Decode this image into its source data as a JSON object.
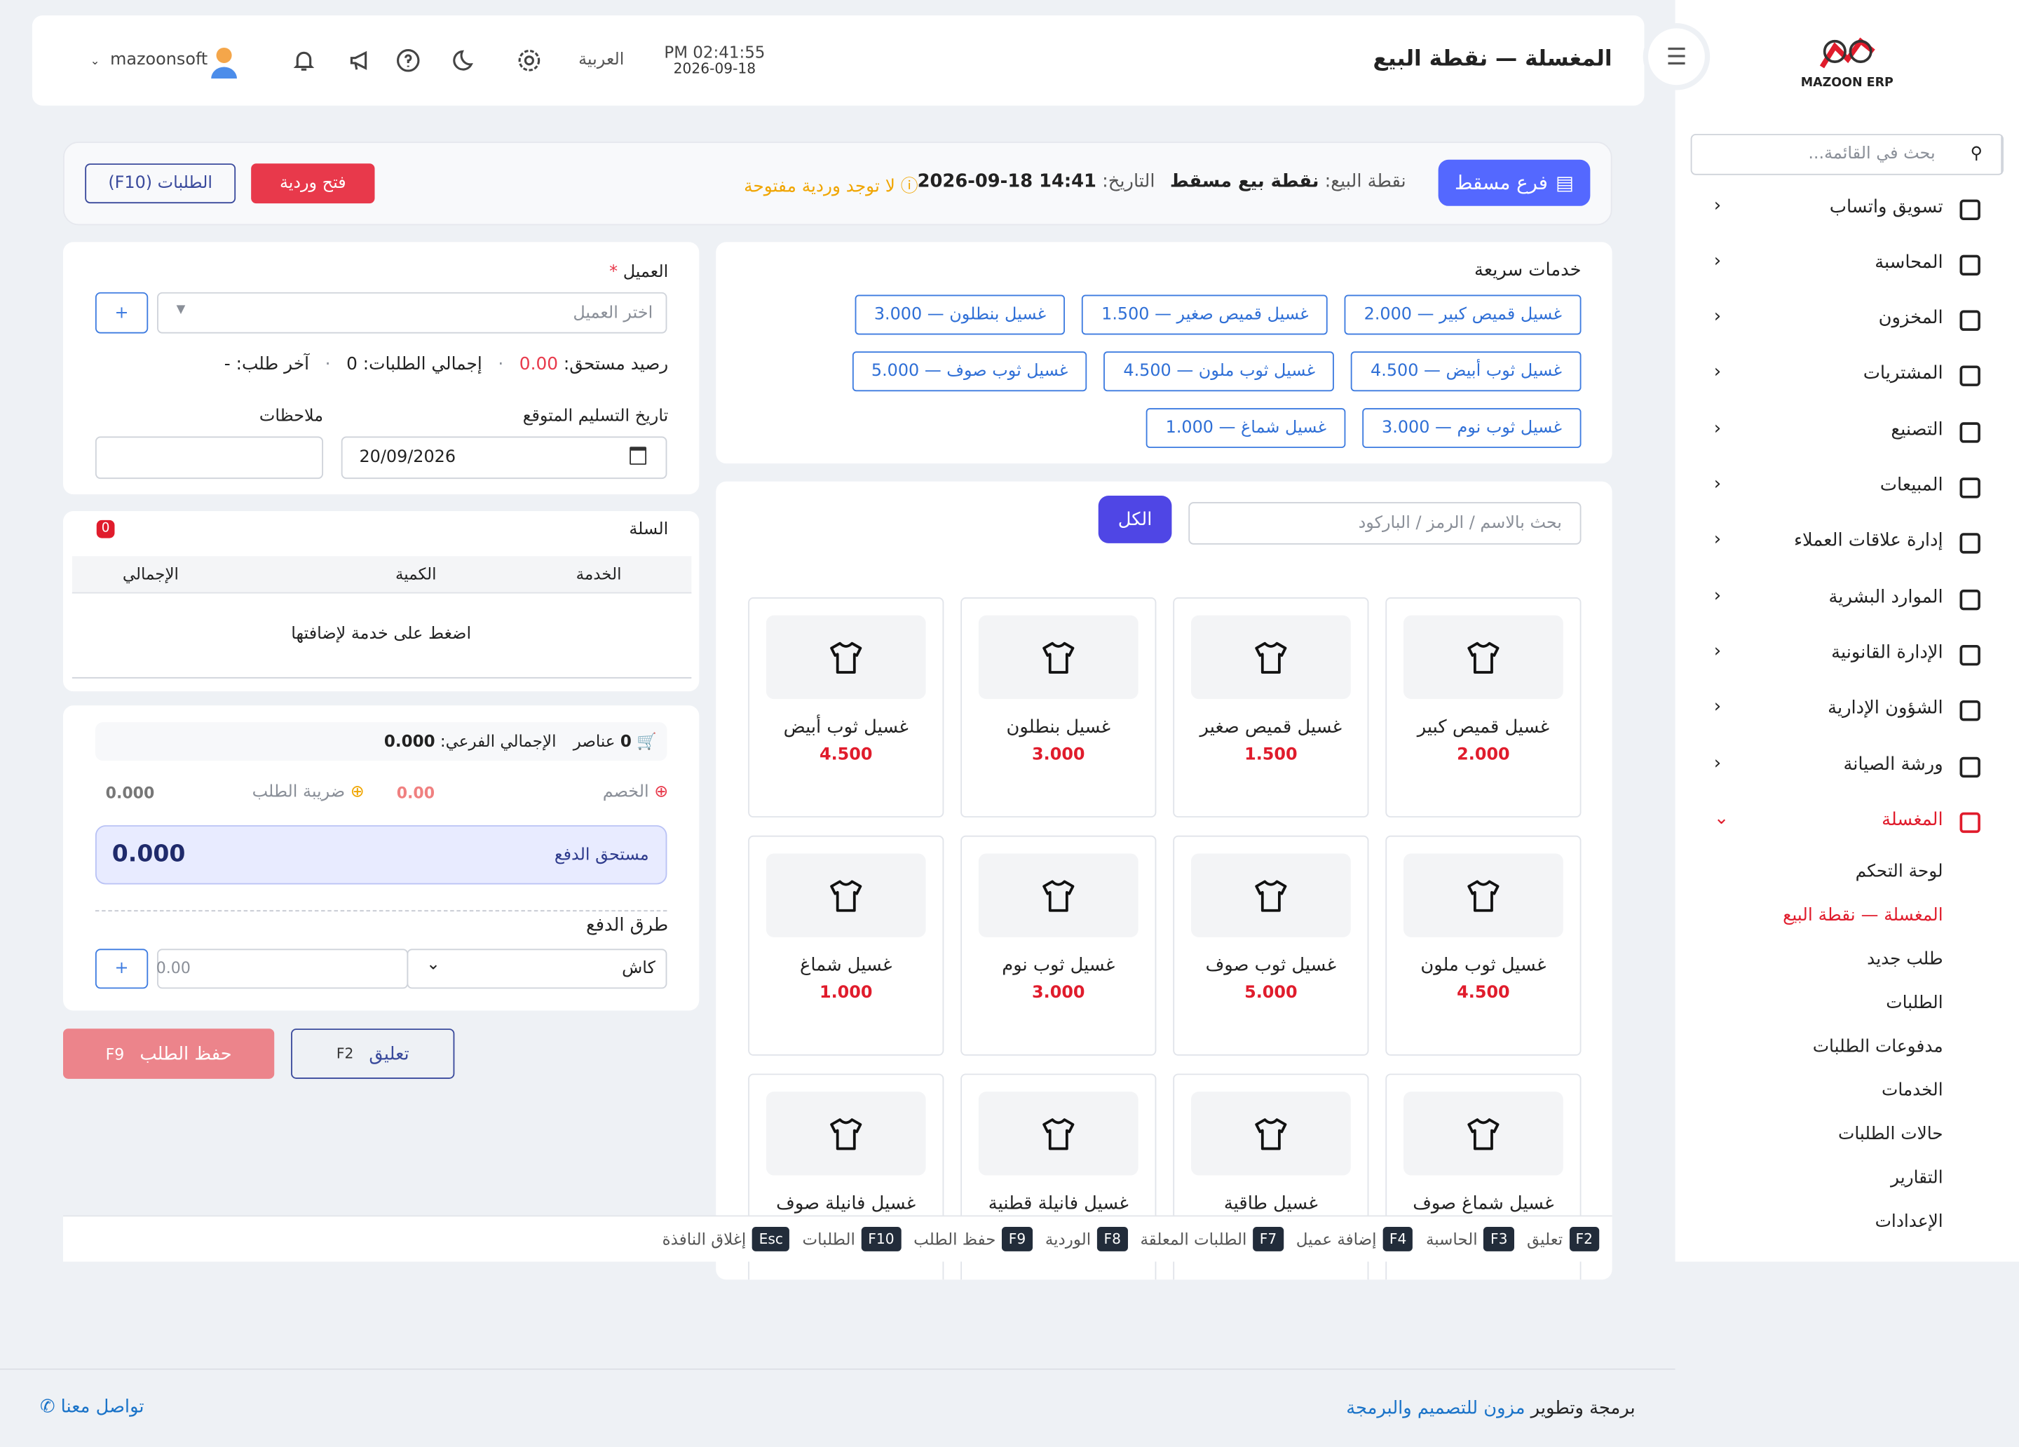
{
  "sidebar": {
    "logo": "MAZOON ERP",
    "search_placeholder": "بحث في القائمة...",
    "menu": [
      "تسويق واتساب",
      "المحاسبة",
      "المخزون",
      "المشتريات",
      "التصنيع",
      "المبيعات",
      "إدارة علاقات العملاء",
      "الموارد البشرية",
      "الإدارة القانونية",
      "الشؤون الإدارية",
      "ورشة الصيانة",
      "المغسلة"
    ],
    "submenu": [
      "لوحة التحكم",
      "المغسلة — نقطة البيع",
      "طلب جديد",
      "الطلبات",
      "مدفوعات الطلبات",
      "الخدمات",
      "حالات الطلبات",
      "التقارير",
      "الإعدادات"
    ]
  },
  "header": {
    "title": "المغسلة — نقطة البيع",
    "time": "PM 02:41:55",
    "date": "2026-09-18",
    "language": "العربية",
    "user": "mazoonsoft"
  },
  "toolbar": {
    "branch": "فرع مسقط",
    "pos_label": "نقطة البيع:",
    "pos_value": "نقطة بيع مسقط",
    "date_label": "التاريخ:",
    "date_value": "2026-09-18 14:41",
    "shift_status": "لا توجد وردية مفتوحة",
    "open_shift": "فتح وردية",
    "orders": "الطلبات (F10)"
  },
  "customer": {
    "label": "العميل",
    "required": "*",
    "placeholder": "اختر العميل",
    "add": "+",
    "balance_label": "رصيد مستحق:",
    "balance": "0.00",
    "orders_label": "إجمالي الطلبات:",
    "orders": "0",
    "last_order_label": "آخر طلب:",
    "last_order": "-",
    "delivery_label": "تاريخ التسليم المتوقع",
    "delivery_date": "20/09/2026",
    "notes_label": "ملاحظات"
  },
  "cart": {
    "title": "السلة",
    "count": "0",
    "columns": [
      "الخدمة",
      "الكمية",
      "الإجمالي"
    ],
    "empty": "اضغط على خدمة لإضافتها"
  },
  "summary": {
    "items_count": "0",
    "items_label": "عناصر",
    "subtotal_label": "الإجمالي الفرعي:",
    "subtotal": "0.000",
    "discount_label": "الخصم",
    "discount": "0.00",
    "tax_label": "ضريبة الطلب",
    "tax": "0.000",
    "due_label": "مستحق الدفع",
    "due": "0.000",
    "payment_title": "طرق الدفع",
    "payment_method": "كاش",
    "amount_placeholder": "0.00",
    "add": "+"
  },
  "actions": {
    "save": "حفظ الطلب",
    "save_key": "F9",
    "hold": "تعليق",
    "hold_key": "F2"
  },
  "quick_services": {
    "title": "خدمات سريعة",
    "items": [
      "غسيل قميص كبير — 2.000",
      "غسيل قميص صغير — 1.500",
      "غسيل بنطلون — 3.000",
      "غسيل ثوب أبيض — 4.500",
      "غسيل ثوب ملون — 4.500",
      "غسيل ثوب صوف — 5.000",
      "غسيل ثوب نوم — 3.000",
      "غسيل شماغ — 1.000"
    ]
  },
  "products": {
    "search_placeholder": "بحث بالاسم / الرمز / الباركود",
    "filter": "الكل",
    "items": [
      {
        "name": "غسيل قميص كبير",
        "price": "2.000"
      },
      {
        "name": "غسيل قميص صغير",
        "price": "1.500"
      },
      {
        "name": "غسيل بنطلون",
        "price": "3.000"
      },
      {
        "name": "غسيل ثوب أبيض",
        "price": "4.500"
      },
      {
        "name": "غسيل ثوب ملون",
        "price": "4.500"
      },
      {
        "name": "غسيل ثوب صوف",
        "price": "5.000"
      },
      {
        "name": "غسيل ثوب نوم",
        "price": "3.000"
      },
      {
        "name": "غسيل شماغ",
        "price": "1.000"
      },
      {
        "name": "غسيل شماغ صوف"
      },
      {
        "name": "غسيل طاقية"
      },
      {
        "name": "غسيل فانيلة قطنية"
      },
      {
        "name": "غسيل فانيلة صوف"
      }
    ]
  },
  "shortcuts": [
    {
      "key": "F2",
      "label": "تعليق"
    },
    {
      "key": "F3",
      "label": "الحاسبة"
    },
    {
      "key": "F4",
      "label": "إضافة عميل"
    },
    {
      "key": "F7",
      "label": "الطلبات المعلقة"
    },
    {
      "key": "F8",
      "label": "الوردية"
    },
    {
      "key": "F9",
      "label": "حفظ الطلب"
    },
    {
      "key": "F10",
      "label": "الطلبات"
    },
    {
      "key": "Esc",
      "label": "إغلاق النافذة"
    }
  ],
  "footer": {
    "credit": "برمجة وتطوير",
    "company": "مزون للتصميم والبرمجة",
    "contact": "تواصل معنا"
  }
}
